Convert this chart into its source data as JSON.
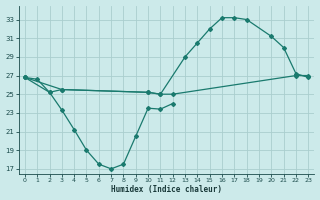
{
  "xlabel": "Humidex (Indice chaleur)",
  "bg_color": "#cceaea",
  "grid_color": "#aacece",
  "line_color": "#1a7a6e",
  "xlim": [
    -0.5,
    23.5
  ],
  "ylim": [
    16.5,
    34.5
  ],
  "yticks": [
    17,
    19,
    21,
    23,
    25,
    27,
    29,
    31,
    33
  ],
  "xticks": [
    0,
    1,
    2,
    3,
    4,
    5,
    6,
    7,
    8,
    9,
    10,
    11,
    12,
    13,
    14,
    15,
    16,
    17,
    18,
    19,
    20,
    21,
    22,
    23
  ],
  "line1_x": [
    0,
    1,
    2,
    3,
    10,
    11,
    12,
    22,
    23
  ],
  "line1_y": [
    26.8,
    26.6,
    25.2,
    25.5,
    25.2,
    25.0,
    25.0,
    27.0,
    27.0
  ],
  "line2_x": [
    0,
    3,
    10,
    11,
    13,
    14,
    15,
    16,
    17,
    18,
    20,
    21,
    22,
    23
  ],
  "line2_y": [
    26.8,
    25.5,
    25.2,
    25.0,
    29.0,
    30.5,
    32.0,
    33.2,
    33.2,
    33.0,
    31.2,
    30.0,
    27.2,
    26.8
  ],
  "line3_x": [
    0,
    2,
    3,
    4,
    5,
    6,
    7,
    8,
    9,
    10,
    11,
    12
  ],
  "line3_y": [
    26.8,
    25.2,
    23.3,
    21.2,
    19.0,
    17.5,
    17.0,
    17.5,
    20.5,
    23.5,
    23.4,
    24.0
  ]
}
